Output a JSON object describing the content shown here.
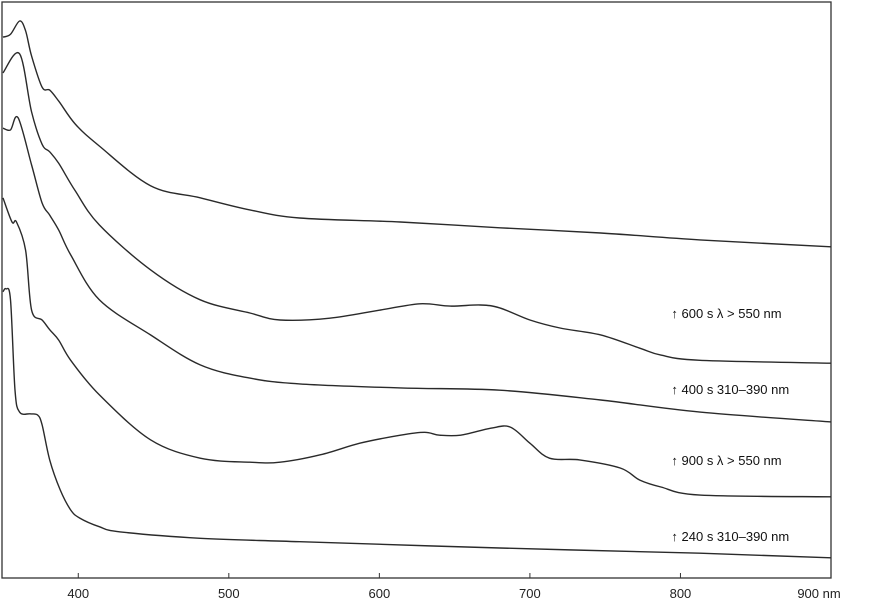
{
  "chart_data": {
    "type": "line",
    "title": "",
    "xlabel": "",
    "ylabel": "",
    "x_unit": "nm",
    "xlim": [
      350,
      900
    ],
    "ylim": [
      0,
      100
    ],
    "x_ticks": [
      400,
      500,
      600,
      700,
      800,
      900
    ],
    "x_tick_labels": [
      "400",
      "500",
      "600",
      "700",
      "800",
      "900 nm"
    ],
    "y_axis_labels_shown": false,
    "grid": false,
    "line_color": "#2a2a2a",
    "series": [
      {
        "x": [
          350,
          355,
          361,
          365,
          369,
          376,
          381,
          387,
          398,
          414,
          448,
          481,
          514,
          547,
          614,
          680,
          747,
          813,
          900
        ],
        "y": [
          93.9,
          94.4,
          96.7,
          95.0,
          90.6,
          85.2,
          84.7,
          82.8,
          78.8,
          75.0,
          68.1,
          66.0,
          63.9,
          62.5,
          61.8,
          60.8,
          59.9,
          58.7,
          57.5
        ]
      },
      {
        "x": [
          350,
          361,
          369,
          376,
          381,
          387,
          398,
          414,
          448,
          481,
          514,
          534,
          567,
          600,
          627,
          647,
          667,
          680,
          700,
          720,
          747,
          773,
          787,
          813,
          900
        ],
        "y": [
          87.7,
          91.0,
          80.9,
          75.3,
          74.0,
          72.0,
          67.2,
          61.3,
          53.5,
          48.3,
          46.0,
          44.8,
          45.1,
          46.5,
          47.6,
          47.2,
          47.4,
          46.9,
          44.8,
          43.4,
          42.2,
          39.9,
          38.7,
          37.8,
          37.3
        ]
      },
      {
        "x": [
          350,
          355,
          360,
          369,
          376,
          381,
          387,
          395,
          414,
          448,
          481,
          514,
          547,
          614,
          680,
          747,
          813,
          900
        ],
        "y": [
          78.1,
          77.8,
          79.9,
          71.7,
          65.1,
          63.0,
          60.4,
          56.1,
          48.3,
          42.2,
          37.0,
          34.7,
          33.7,
          33.0,
          32.6,
          30.9,
          28.8,
          27.1
        ]
      },
      {
        "x": [
          350,
          356,
          359,
          365,
          369,
          376,
          381,
          387,
          395,
          414,
          448,
          481,
          514,
          534,
          561,
          587,
          614,
          630,
          640,
          654,
          674,
          687,
          700,
          713,
          733,
          760,
          773,
          787,
          813,
          900
        ],
        "y": [
          66.0,
          61.8,
          61.8,
          56.9,
          46.5,
          44.8,
          43.1,
          41.3,
          37.8,
          31.8,
          24.0,
          20.8,
          20.1,
          20.1,
          21.4,
          23.4,
          24.8,
          25.3,
          24.8,
          24.8,
          26.0,
          26.2,
          23.4,
          20.8,
          20.5,
          19.1,
          17.0,
          15.8,
          14.4,
          14.1
        ]
      },
      {
        "x": [
          350,
          352,
          355,
          358,
          361,
          368,
          373,
          376,
          381,
          388,
          395,
          401,
          414,
          428,
          481,
          547,
          680,
          813,
          900
        ],
        "y": [
          49.7,
          50.2,
          48.3,
          32.6,
          28.8,
          28.5,
          28.3,
          26.6,
          20.5,
          15.3,
          11.8,
          10.4,
          8.9,
          8.0,
          6.9,
          6.3,
          5.2,
          4.3,
          3.5
        ]
      }
    ],
    "annotations": [
      {
        "text": "↑ 600 s λ > 550 nm",
        "x": 794,
        "y": 46.0
      },
      {
        "text": "↑ 400 s 310–390 nm",
        "x": 794,
        "y": 32.8
      },
      {
        "text": "↑ 900 s λ > 550 nm",
        "x": 794,
        "y": 20.5
      },
      {
        "text": "↑ 240 s 310–390 nm",
        "x": 794,
        "y": 7.3
      }
    ]
  }
}
